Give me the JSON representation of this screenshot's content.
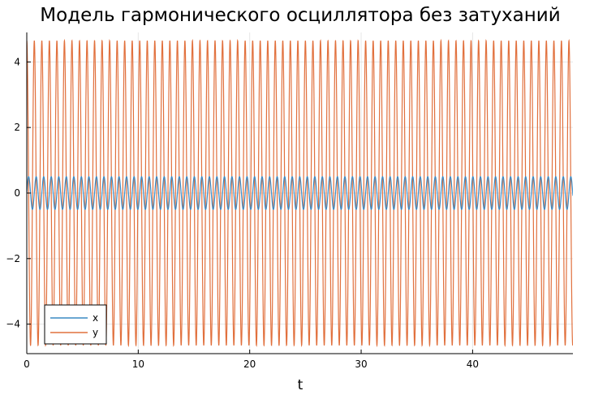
{
  "chart_data": {
    "type": "line",
    "title": "Модель гармонического осциллятора без затуханий",
    "xlabel": "t",
    "ylabel": "",
    "xlim": [
      0,
      49
    ],
    "ylim": [
      -4.9,
      4.9
    ],
    "x_ticks": [
      0,
      10,
      20,
      30,
      40
    ],
    "x_tick_labels": [
      "0",
      "10",
      "20",
      "30",
      "40"
    ],
    "y_ticks": [
      -4,
      -2,
      0,
      2,
      4
    ],
    "y_tick_labels": [
      "−4",
      "−2",
      "0",
      "2",
      "4"
    ],
    "grid": true,
    "legend_position": "bottom-left",
    "series": [
      {
        "name": "x",
        "color": "#3a8ac4",
        "function": "0.5*sin(9.3*t)",
        "amplitude": 0.5,
        "angular_frequency": 9.3,
        "t_range": [
          0,
          49
        ]
      },
      {
        "name": "y",
        "color": "#e1703d",
        "function": "4.65*cos(9.3*t)",
        "amplitude": 4.65,
        "angular_frequency": 9.3,
        "t_range": [
          0,
          49
        ]
      }
    ]
  }
}
